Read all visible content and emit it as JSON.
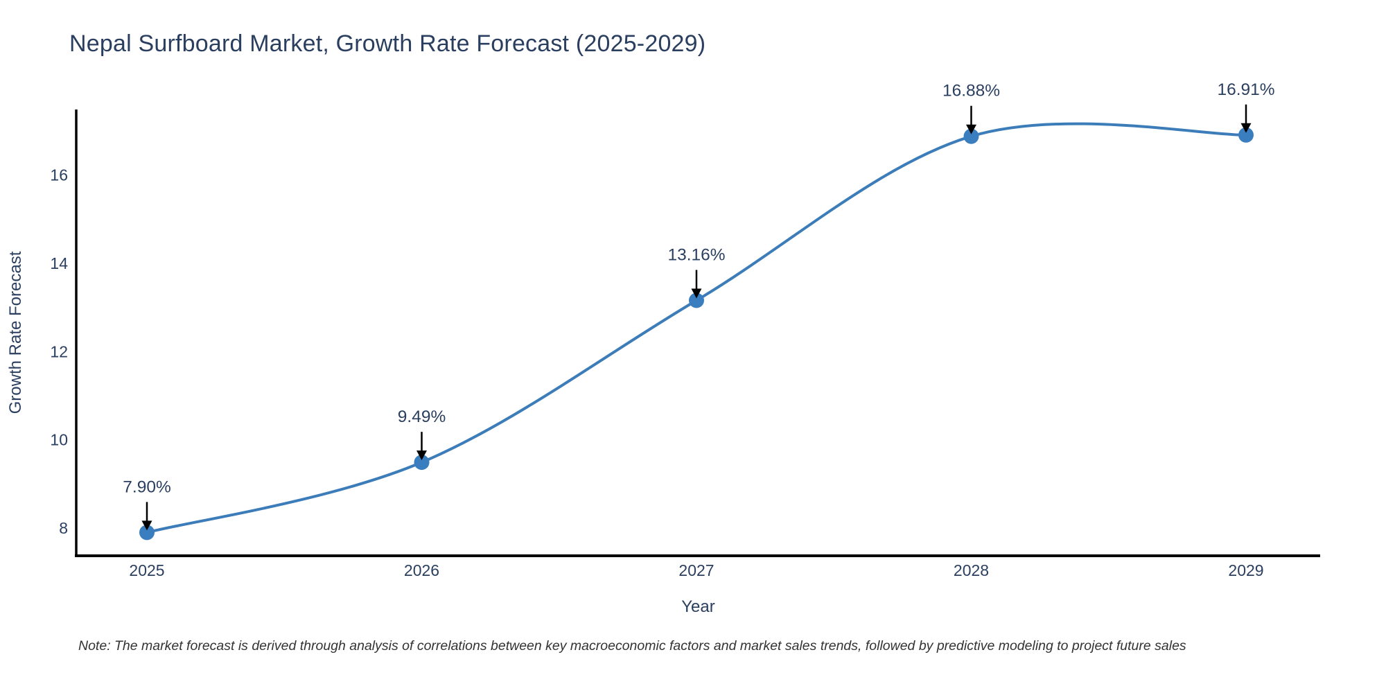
{
  "page": {
    "background": "#ffffff"
  },
  "chart_data": {
    "type": "line",
    "title": "Nepal Surfboard Market, Growth Rate Forecast (2025-2029)",
    "xlabel": "Year",
    "ylabel": "Growth Rate Forecast",
    "categories": [
      "2025",
      "2026",
      "2027",
      "2028",
      "2029"
    ],
    "series": [
      {
        "name": "Growth Rate Forecast",
        "values": [
          7.9,
          9.49,
          13.16,
          16.88,
          16.91
        ]
      }
    ],
    "point_labels": [
      "7.90%",
      "9.49%",
      "13.16%",
      "16.88%",
      "16.91%"
    ],
    "yticks": [
      8,
      10,
      12,
      14,
      16
    ],
    "ylim": [
      7.4,
      17.5
    ],
    "line_shape": "spline",
    "grid": false,
    "legend_position": "none",
    "colors": {
      "line": "#3c7db9",
      "marker": "#3a7ebf",
      "annotation_arrow": "#000000",
      "axis": "#000000",
      "text": "#2a3f5f",
      "note": "#333333"
    }
  },
  "note": {
    "text": "Note: The market forecast is derived through analysis of correlations between key macroeconomic factors and market sales trends, followed by predictive modeling to project future sales"
  }
}
